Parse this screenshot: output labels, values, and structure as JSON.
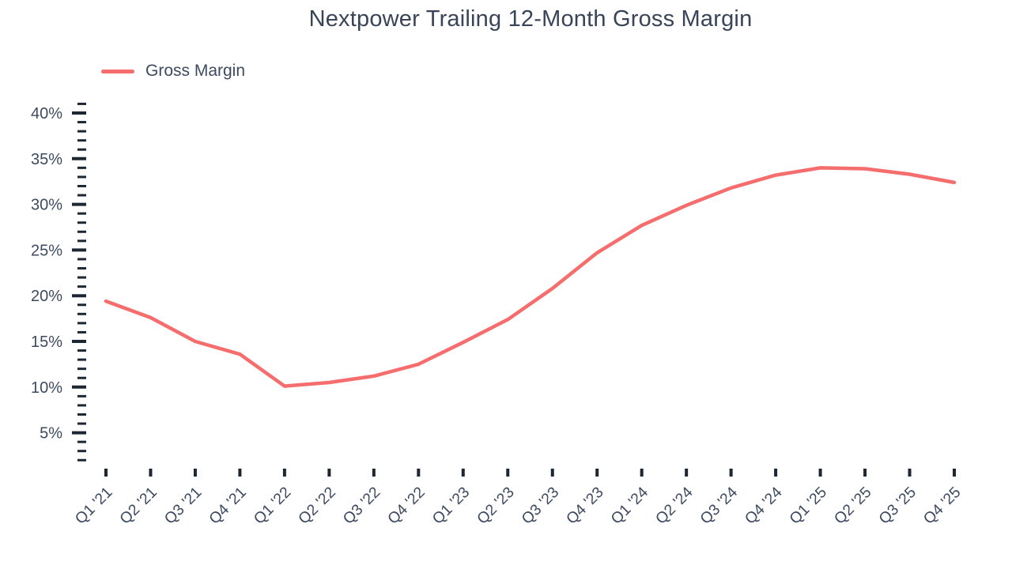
{
  "title": "Nextpower Trailing 12-Month Gross Margin",
  "chart_data": {
    "type": "line",
    "title": "Nextpower Trailing 12-Month Gross Margin",
    "categories": [
      "Q1 '21",
      "Q2 '21",
      "Q3 '21",
      "Q4 '21",
      "Q1 '22",
      "Q2 '22",
      "Q3 '22",
      "Q4 '22",
      "Q1 '23",
      "Q2 '23",
      "Q3 '23",
      "Q4 '23",
      "Q1 '24",
      "Q2 '24",
      "Q3 '24",
      "Q4 '24",
      "Q1 '25",
      "Q2 '25",
      "Q3 '25",
      "Q4 '25"
    ],
    "series": [
      {
        "name": "Gross Margin",
        "values": [
          19.4,
          17.6,
          15.0,
          13.6,
          10.1,
          10.5,
          11.2,
          12.5,
          14.9,
          17.4,
          20.8,
          24.7,
          27.7,
          29.9,
          31.8,
          33.2,
          34.0,
          33.9,
          33.3,
          32.4
        ],
        "color": "#F56D6D"
      }
    ],
    "xlabel": "",
    "ylabel": "",
    "y_unit": "%",
    "y_major_ticks": [
      5,
      10,
      15,
      20,
      25,
      30,
      35,
      40
    ],
    "y_minor_step": 1,
    "y_tick_range": [
      2,
      41
    ],
    "ylim": [
      0,
      42
    ],
    "grid": false,
    "legend_position": "top-left",
    "colors": {
      "line": "#F56D6D",
      "tick": "#1D2733",
      "label": "#3E4A61",
      "title": "#394458",
      "background": "#ffffff"
    }
  }
}
